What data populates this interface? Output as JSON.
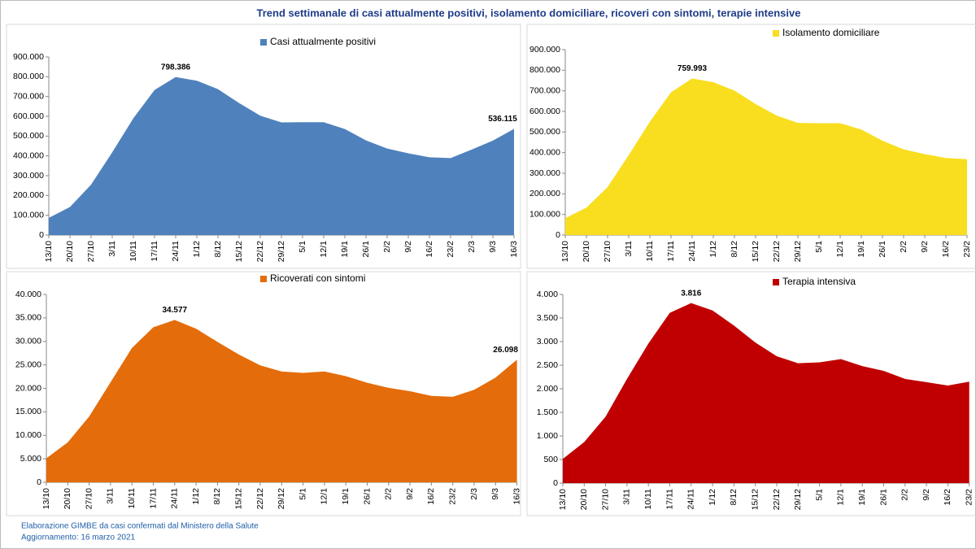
{
  "title": "Trend settimanale di casi attualmente positivi, isolamento domiciliare, ricoveri con sintomi, terapie intensive",
  "source": "Elaborazione GIMBE da casi confermati dal Ministero della Salute",
  "updated": "Aggiornamento: 16 marzo 2021",
  "chart_data": [
    {
      "type": "area",
      "categories": [
        "13/10",
        "20/10",
        "27/10",
        "3/11",
        "10/11",
        "17/11",
        "24/11",
        "1/12",
        "8/12",
        "15/12",
        "22/12",
        "29/12",
        "5/1",
        "12/1",
        "19/1",
        "26/1",
        "2/2",
        "9/2",
        "16/2",
        "23/2",
        "2/3",
        "9/3",
        "16/3"
      ],
      "series": [
        {
          "name": "Casi attualmente positivi",
          "color": "#4f81bd",
          "values": [
            87000,
            142000,
            255000,
            418000,
            590000,
            733000,
            798386,
            780000,
            737000,
            667000,
            603000,
            569000,
            570000,
            570000,
            536000,
            478000,
            437000,
            413000,
            393000,
            389000,
            432000,
            477000,
            536115
          ],
          "value_labels": [
            null,
            null,
            null,
            null,
            null,
            null,
            "798.386",
            null,
            null,
            null,
            null,
            null,
            null,
            null,
            null,
            null,
            null,
            null,
            null,
            null,
            null,
            null,
            "536.115"
          ]
        }
      ],
      "ylim": [
        0,
        900000
      ],
      "yticks": [
        0,
        {
          "value": 100000,
          "label": "100.000"
        },
        {
          "value": 200000,
          "label": "200.000"
        },
        {
          "value": 300000,
          "label": "300.000"
        },
        {
          "value": 400000,
          "label": "400.000"
        },
        {
          "value": 500000,
          "label": "500.000"
        },
        {
          "value": 600000,
          "label": "600.000"
        },
        {
          "value": 700000,
          "label": "700.000"
        },
        {
          "value": 800000,
          "label": "800.000"
        },
        {
          "value": 900000,
          "label": "900.000"
        }
      ],
      "grid": false
    },
    {
      "type": "area",
      "categories": [
        "13/10",
        "20/10",
        "27/10",
        "3/11",
        "10/11",
        "17/11",
        "24/11",
        "1/12",
        "8/12",
        "15/12",
        "22/12",
        "29/12",
        "5/1",
        "12/1",
        "19/1",
        "26/1",
        "2/2",
        "9/2",
        "16/2",
        "23/2"
      ],
      "series": [
        {
          "name": "Isolamento domiciliare",
          "color": "#f8de1f",
          "values": [
            82000,
            133000,
            233000,
            388000,
            550000,
            693000,
            759993,
            742000,
            701000,
            636000,
            580000,
            544000,
            543000,
            543000,
            512000,
            458000,
            416000,
            393000,
            374000,
            368000
          ],
          "value_labels": [
            null,
            null,
            null,
            null,
            null,
            null,
            "759.993",
            null,
            null,
            null,
            null,
            null,
            null,
            null,
            null,
            null,
            null,
            null,
            null,
            null
          ]
        }
      ],
      "ylim": [
        0,
        900000
      ],
      "yticks": [
        0,
        {
          "value": 100000,
          "label": "100.000"
        },
        {
          "value": 200000,
          "label": "200.000"
        },
        {
          "value": 300000,
          "label": "300.000"
        },
        {
          "value": 400000,
          "label": "400.000"
        },
        {
          "value": 500000,
          "label": "500.000"
        },
        {
          "value": 600000,
          "label": "600.000"
        },
        {
          "value": 700000,
          "label": "700.000"
        },
        {
          "value": 800000,
          "label": "800.000"
        },
        {
          "value": 900000,
          "label": "900.000"
        }
      ],
      "grid": false
    },
    {
      "type": "area",
      "categories": [
        "13/10",
        "20/10",
        "27/10",
        "3/11",
        "10/11",
        "17/11",
        "24/11",
        "1/12",
        "8/12",
        "15/12",
        "22/12",
        "29/12",
        "5/1",
        "12/1",
        "19/1",
        "26/1",
        "2/2",
        "9/2",
        "16/2",
        "23/2",
        "2/3",
        "9/3",
        "16/3"
      ],
      "series": [
        {
          "name": "Ricoverati con sintomi",
          "color": "#e46c0a",
          "values": [
            5100,
            8500,
            14000,
            21300,
            28600,
            33000,
            34577,
            32700,
            29900,
            27200,
            24900,
            23600,
            23300,
            23600,
            22600,
            21200,
            20100,
            19400,
            18400,
            18200,
            19700,
            22300,
            26098
          ],
          "value_labels": [
            null,
            null,
            null,
            null,
            null,
            null,
            "34.577",
            null,
            null,
            null,
            null,
            null,
            null,
            null,
            null,
            null,
            null,
            null,
            null,
            null,
            null,
            null,
            "26.098"
          ]
        }
      ],
      "ylim": [
        0,
        40000
      ],
      "yticks": [
        0,
        {
          "value": 5000,
          "label": "5.000"
        },
        {
          "value": 10000,
          "label": "10.000"
        },
        {
          "value": 15000,
          "label": "15.000"
        },
        {
          "value": 20000,
          "label": "20.000"
        },
        {
          "value": 25000,
          "label": "25.000"
        },
        {
          "value": 30000,
          "label": "30.000"
        },
        {
          "value": 35000,
          "label": "35.000"
        },
        {
          "value": 40000,
          "label": "40.000"
        }
      ],
      "grid": false
    },
    {
      "type": "area",
      "categories": [
        "13/10",
        "20/10",
        "27/10",
        "3/11",
        "10/11",
        "17/11",
        "24/11",
        "1/12",
        "8/12",
        "15/12",
        "22/12",
        "29/12",
        "5/1",
        "12/1",
        "19/1",
        "26/1",
        "2/2",
        "9/2",
        "16/2",
        "23/2"
      ],
      "series": [
        {
          "name": "Terapia intensiva",
          "color": "#c00000",
          "values": [
            514,
            870,
            1410,
            2210,
            2960,
            3610,
            3816,
            3660,
            3340,
            2980,
            2690,
            2540,
            2560,
            2630,
            2480,
            2380,
            2210,
            2140,
            2070,
            2150
          ],
          "value_labels": [
            null,
            null,
            null,
            null,
            null,
            null,
            "3.816",
            null,
            null,
            null,
            null,
            null,
            null,
            null,
            null,
            null,
            null,
            null,
            null,
            null
          ]
        }
      ],
      "ylim": [
        0,
        4000
      ],
      "yticks": [
        0,
        {
          "value": 500,
          "label": "500"
        },
        {
          "value": 1000,
          "label": "1.000"
        },
        {
          "value": 1500,
          "label": "1.500"
        },
        {
          "value": 2000,
          "label": "2.000"
        },
        {
          "value": 2500,
          "label": "2.500"
        },
        {
          "value": 3000,
          "label": "3.000"
        },
        {
          "value": 3500,
          "label": "3.500"
        },
        {
          "value": 4000,
          "label": "4.000"
        }
      ],
      "grid": false
    }
  ]
}
